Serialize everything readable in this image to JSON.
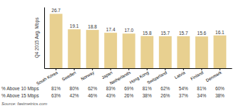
{
  "chart_data": {
    "type": "bar",
    "categories": [
      "South Korea",
      "Sweden",
      "Norway",
      "Japan",
      "Netherlands",
      "Hong Kong",
      "Switzerland",
      "Latvia",
      "Finland",
      "Denmark"
    ],
    "values": [
      26.7,
      19.1,
      18.8,
      17.4,
      17.0,
      15.8,
      15.7,
      15.7,
      15.6,
      16.1
    ],
    "value_labels": [
      "26.7",
      "19.1",
      "18.8",
      "17.4",
      "17.0",
      "15.8",
      "15.7",
      "15.7",
      "15.6",
      "16.1"
    ],
    "data_labels": true,
    "color": "#e8d090",
    "ylabel": "Q4 2015 Avg. Mbps",
    "ylim": [
      0,
      30
    ],
    "tick_labels": "x",
    "grid": false,
    "table": [
      {
        "name": "% Above 10 Mbps",
        "values": [
          81,
          80,
          62,
          83,
          69,
          81,
          62,
          54,
          81,
          60
        ],
        "value_labels": [
          "81%",
          "80%",
          "62%",
          "83%",
          "69%",
          "81%",
          "62%",
          "54%",
          "81%",
          "60%"
        ]
      },
      {
        "name": "% Above 15 Mbps",
        "values": [
          63,
          42,
          46,
          43,
          26,
          38,
          26,
          37,
          34,
          38
        ],
        "value_labels": [
          "63%",
          "42%",
          "46%",
          "43%",
          "26%",
          "38%",
          "26%",
          "37%",
          "34%",
          "38%"
        ]
      }
    ],
    "source": "Source: fastmetrics.com"
  }
}
